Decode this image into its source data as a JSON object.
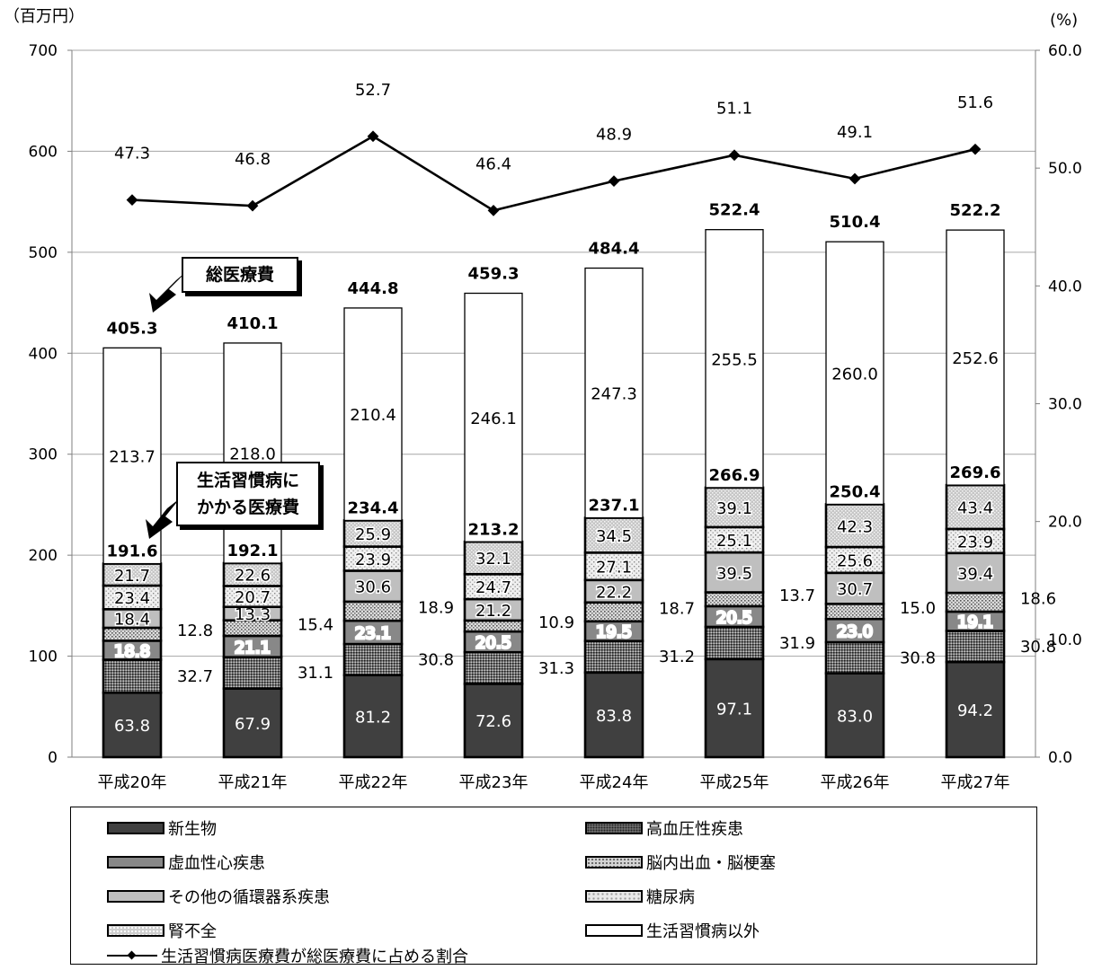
{
  "units": {
    "left": "（百万円）",
    "right": "(%)"
  },
  "chart_data": {
    "type": "bar",
    "stacked": true,
    "categories": [
      "平成20年",
      "平成21年",
      "平成22年",
      "平成23年",
      "平成24年",
      "平成25年",
      "平成26年",
      "平成27年"
    ],
    "y_left": {
      "lim": [
        0,
        700
      ],
      "ticks": [
        "0",
        "100",
        "200",
        "300",
        "400",
        "500",
        "600",
        "700"
      ]
    },
    "y_right": {
      "lim": [
        0,
        60
      ],
      "ticks": [
        "0.0",
        "10.0",
        "20.0",
        "30.0",
        "40.0",
        "50.0",
        "60.0"
      ]
    },
    "grid": true,
    "series": [
      {
        "name": "新生物",
        "values": [
          63.8,
          67.9,
          81.2,
          72.6,
          83.8,
          97.1,
          83.0,
          94.2
        ],
        "labels": [
          "63.8",
          "67.9",
          "81.2",
          "72.6",
          "83.8",
          "97.1",
          "83.0",
          "94.2"
        ]
      },
      {
        "name": "高血圧性疾患",
        "values": [
          32.7,
          31.1,
          30.8,
          31.3,
          31.2,
          31.9,
          30.8,
          30.8
        ],
        "labels": [
          "32.7",
          "31.1",
          "30.8",
          "31.3",
          "31.2",
          "31.9",
          "30.8",
          "30.8"
        ]
      },
      {
        "name": "虚血性心疾患",
        "values": [
          18.8,
          21.1,
          23.1,
          20.5,
          19.5,
          20.5,
          23.0,
          19.1
        ],
        "labels": [
          "18.8",
          "21.1",
          "23.1",
          "20.5",
          "19.5",
          "20.5",
          "23.0",
          "19.1"
        ]
      },
      {
        "name": "脳内出血・脳梗塞",
        "values": [
          12.8,
          15.4,
          18.9,
          10.9,
          18.7,
          13.7,
          15.0,
          18.6
        ],
        "labels": [
          "12.8",
          "15.4",
          "18.9",
          "10.9",
          "18.7",
          "13.7",
          "15.0",
          "18.6"
        ]
      },
      {
        "name": "その他の循環器系疾患",
        "values": [
          18.4,
          13.3,
          30.6,
          21.2,
          22.2,
          39.5,
          30.7,
          39.4
        ],
        "labels": [
          "18.4",
          "13.3",
          "30.6",
          "21.2",
          "22.2",
          "39.5",
          "30.7",
          "39.4"
        ]
      },
      {
        "name": "糖尿病",
        "values": [
          23.4,
          20.7,
          23.9,
          24.7,
          27.1,
          25.1,
          25.6,
          23.9
        ],
        "labels": [
          "23.4",
          "20.7",
          "23.9",
          "24.7",
          "27.1",
          "25.1",
          "25.6",
          "23.9"
        ]
      },
      {
        "name": "腎不全",
        "values": [
          21.7,
          22.6,
          25.9,
          32.1,
          34.5,
          39.1,
          42.3,
          43.4
        ],
        "labels": [
          "21.7",
          "22.6",
          "25.9",
          "32.1",
          "34.5",
          "39.1",
          "42.3",
          "43.4"
        ]
      },
      {
        "name": "生活習慣病以外",
        "values": [
          213.7,
          218.0,
          210.4,
          246.1,
          247.3,
          255.5,
          260.0,
          252.6
        ],
        "labels": [
          "213.7",
          "218.0",
          "210.4",
          "246.1",
          "247.3",
          "255.5",
          "260.0",
          "252.6"
        ]
      }
    ],
    "lifestyle_totals": {
      "values": [
        191.6,
        192.1,
        234.4,
        213.2,
        237.1,
        266.9,
        250.4,
        269.6
      ],
      "labels": [
        "191.6",
        "192.1",
        "234.4",
        "213.2",
        "237.1",
        "266.9",
        "250.4",
        "269.6"
      ]
    },
    "grand_totals": {
      "values": [
        405.3,
        410.1,
        444.8,
        459.3,
        484.4,
        522.4,
        510.4,
        522.2
      ],
      "labels": [
        "405.3",
        "410.1",
        "444.8",
        "459.3",
        "484.4",
        "522.4",
        "510.4",
        "522.2"
      ]
    },
    "ratio_line": {
      "name": "生活習慣病医療費が総医療費に占める割合",
      "axis": "right",
      "values": [
        47.3,
        46.8,
        52.7,
        46.4,
        48.9,
        51.1,
        49.1,
        51.6
      ],
      "labels": [
        "47.3",
        "46.8",
        "52.7",
        "46.4",
        "48.9",
        "51.1",
        "49.1",
        "51.6"
      ]
    },
    "legend_position": "bottom"
  },
  "callouts": {
    "total": "総医療費",
    "lifestyle": [
      "生活習慣病に",
      "かかる医療費"
    ]
  },
  "colors": {
    "shade_dark": "#404040",
    "shade_mid": "#888888",
    "shade_light": "#bfbfbf",
    "grid": "#a6a6a6"
  }
}
